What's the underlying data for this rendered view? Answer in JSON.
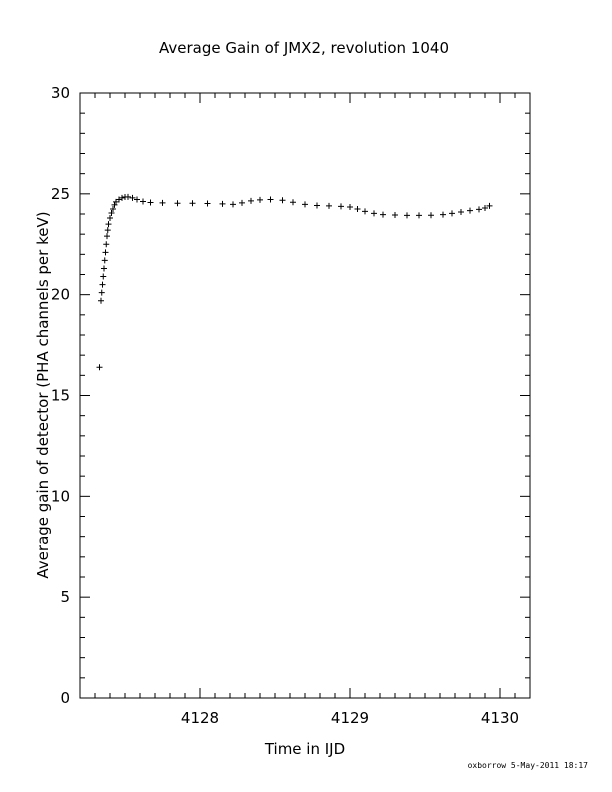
{
  "chart_data": {
    "type": "scatter",
    "title": "Average Gain of JMX2, revolution 1040",
    "xlabel": "Time in IJD",
    "ylabel": "Average gain of detector (PHA channels per keV)",
    "xlim": [
      4127.2,
      4130.2
    ],
    "ylim": [
      0,
      30
    ],
    "xticks": [
      4128,
      4129,
      4130
    ],
    "yticks": [
      0,
      5,
      10,
      15,
      20,
      25,
      30
    ],
    "marker": "plus",
    "grid": false,
    "series": [
      {
        "values_xy": [
          [
            4127.33,
            16.4
          ],
          [
            4127.34,
            19.7
          ],
          [
            4127.345,
            20.1
          ],
          [
            4127.35,
            20.5
          ],
          [
            4127.355,
            20.9
          ],
          [
            4127.36,
            21.3
          ],
          [
            4127.365,
            21.7
          ],
          [
            4127.37,
            22.1
          ],
          [
            4127.375,
            22.5
          ],
          [
            4127.38,
            22.9
          ],
          [
            4127.385,
            23.2
          ],
          [
            4127.39,
            23.5
          ],
          [
            4127.4,
            23.8
          ],
          [
            4127.41,
            24.05
          ],
          [
            4127.42,
            24.25
          ],
          [
            4127.43,
            24.45
          ],
          [
            4127.44,
            24.6
          ],
          [
            4127.46,
            24.72
          ],
          [
            4127.48,
            24.8
          ],
          [
            4127.5,
            24.84
          ],
          [
            4127.52,
            24.85
          ],
          [
            4127.55,
            24.8
          ],
          [
            4127.58,
            24.72
          ],
          [
            4127.62,
            24.62
          ],
          [
            4127.67,
            24.57
          ],
          [
            4127.75,
            24.55
          ],
          [
            4127.85,
            24.53
          ],
          [
            4127.95,
            24.53
          ],
          [
            4128.05,
            24.52
          ],
          [
            4128.15,
            24.5
          ],
          [
            4128.22,
            24.48
          ],
          [
            4128.28,
            24.55
          ],
          [
            4128.34,
            24.65
          ],
          [
            4128.4,
            24.7
          ],
          [
            4128.47,
            24.72
          ],
          [
            4128.55,
            24.68
          ],
          [
            4128.62,
            24.58
          ],
          [
            4128.7,
            24.48
          ],
          [
            4128.78,
            24.42
          ],
          [
            4128.86,
            24.4
          ],
          [
            4128.94,
            24.38
          ],
          [
            4129.0,
            24.35
          ],
          [
            4129.05,
            24.25
          ],
          [
            4129.1,
            24.13
          ],
          [
            4129.16,
            24.03
          ],
          [
            4129.22,
            23.97
          ],
          [
            4129.3,
            23.95
          ],
          [
            4129.38,
            23.93
          ],
          [
            4129.46,
            23.93
          ],
          [
            4129.54,
            23.94
          ],
          [
            4129.62,
            23.97
          ],
          [
            4129.68,
            24.03
          ],
          [
            4129.74,
            24.1
          ],
          [
            4129.8,
            24.17
          ],
          [
            4129.86,
            24.23
          ],
          [
            4129.9,
            24.3
          ],
          [
            4129.93,
            24.4
          ]
        ]
      }
    ]
  },
  "footer": {
    "text": "oxborrow  5-May-2011 18:17"
  }
}
